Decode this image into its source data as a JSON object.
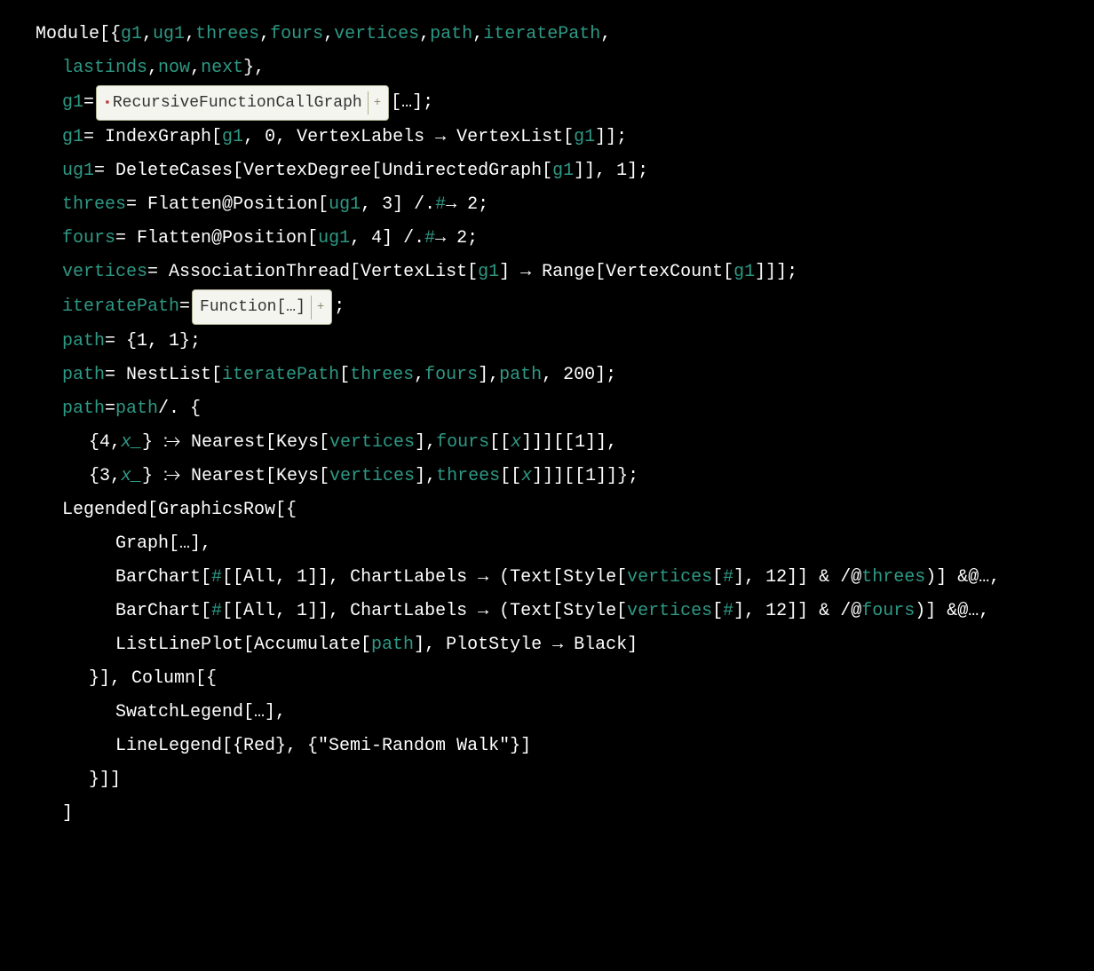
{
  "colors": {
    "background": "#000000",
    "text_default": "#ffffff",
    "symbol": "#2e9985",
    "pill_bg": "#f5f5f0",
    "pill_border": "#b0b090",
    "pill_text": "#333333",
    "pill_accent": "#c03030"
  },
  "fonts": {
    "family": "Courier New",
    "size_pt": 20
  },
  "code": {
    "l01": {
      "pre": "Module[{",
      "sym1": "g1",
      "c1": ", ",
      "sym2": "ug1",
      "c2": ", ",
      "sym3": "threes",
      "c3": ", ",
      "sym4": "fours",
      "c4": ", ",
      "sym5": "vertices",
      "c5": ", ",
      "sym6": "path",
      "c6": ", ",
      "sym7": "iteratePath",
      "post": ","
    },
    "l02": {
      "sym1": "lastinds",
      "c1": ", ",
      "sym2": "now",
      "c2": ", ",
      "sym3": "next",
      "post": "},"
    },
    "l03": {
      "sym": "g1",
      "eq": " = ",
      "pill_prefix": "▪",
      "pill_text": "RecursiveFunctionCallGraph",
      "pill_plus": "+",
      "post": "[…];"
    },
    "l04": {
      "sym1": "g1",
      "mid1": " = IndexGraph[",
      "sym2": "g1",
      "mid2": ", 0, VertexLabels → VertexList[",
      "sym3": "g1",
      "post": "]];"
    },
    "l05": {
      "sym1": "ug1",
      "mid": " = DeleteCases[VertexDegree[UndirectedGraph[",
      "sym2": "g1",
      "post": "]], 1];"
    },
    "l06": {
      "sym1": "threes",
      "mid1": " = Flatten@Position[",
      "sym2": "ug1",
      "mid2": ", 3] /. ",
      "pat": "#",
      "post": " → 2;"
    },
    "l07": {
      "sym1": "fours",
      "mid1": " = Flatten@Position[",
      "sym2": "ug1",
      "mid2": ", 4] /. ",
      "pat": "#",
      "post": " → 2;"
    },
    "l08": {
      "sym1": "vertices",
      "mid1": " = AssociationThread[VertexList[",
      "sym2": "g1",
      "mid2": "] → Range[VertexCount[",
      "sym3": "g1",
      "post": "]]];"
    },
    "l09": {
      "sym": "iteratePath",
      "eq": " = ",
      "pill_text": "Function[…]",
      "pill_plus": "+",
      "post": ";"
    },
    "l10": {
      "sym": "path",
      "post": " = {1, 1};"
    },
    "l11": {
      "sym1": "path",
      "mid": " = NestList[",
      "sym2": "iteratePath",
      "c1": "[",
      "sym3": "threes",
      "c2": ", ",
      "sym4": "fours",
      "c3": "], ",
      "sym5": "path",
      "post": ", 200];"
    },
    "l12": {
      "sym1": "path",
      "eq": " = ",
      "sym2": "path",
      "post": " /. {"
    },
    "l13": {
      "pre": "{4, ",
      "pat": "x_",
      "mid": "} ⧴ Nearest[Keys[",
      "sym1": "vertices",
      "c1": "], ",
      "sym2": "fours",
      "c2": "[[",
      "patx": "x",
      "post": "]]][[1]],"
    },
    "l14": {
      "pre": "{3, ",
      "pat": "x_",
      "mid": "} ⧴ Nearest[Keys[",
      "sym1": "vertices",
      "c1": "], ",
      "sym2": "threes",
      "c2": "[[",
      "patx": "x",
      "post": "]]][[1]]};"
    },
    "l15": {
      "post": "Legended[GraphicsRow[{"
    },
    "l16": {
      "post": "Graph[…],"
    },
    "l17": {
      "pre": "BarChart[",
      "pat1": "#",
      "mid1": "[[All, 1]], ChartLabels → (Text[Style[",
      "sym1": "vertices",
      "c1": "[",
      "pat2": "#",
      "c2": "], 12]] & /@ ",
      "sym2": "threes",
      "post": ")] &@…,"
    },
    "l18": {
      "pre": "BarChart[",
      "pat1": "#",
      "mid1": "[[All, 1]], ChartLabels → (Text[Style[",
      "sym1": "vertices",
      "c1": "[",
      "pat2": "#",
      "c2": "], 12]] & /@ ",
      "sym2": "fours",
      "post": ")] &@…,"
    },
    "l19": {
      "pre": "ListLinePlot[Accumulate[",
      "sym": "path",
      "post": "], PlotStyle → Black]"
    },
    "l20": {
      "post": "}], Column[{"
    },
    "l21": {
      "post": "SwatchLegend[…],"
    },
    "l22": {
      "post": "LineLegend[{Red}, {\"Semi-Random Walk\"}]"
    },
    "l23": {
      "post": "}]]"
    },
    "l24": {
      "post": "]"
    }
  }
}
